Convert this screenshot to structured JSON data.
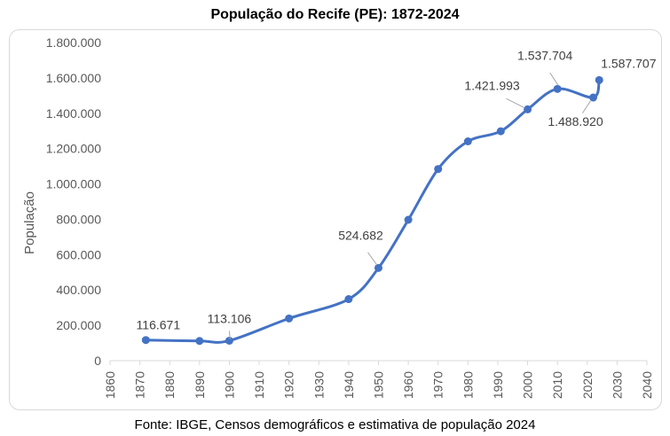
{
  "chart_data": {
    "type": "line",
    "title": "População do Recife (PE): 1872-2024",
    "xlabel": "",
    "ylabel": "População",
    "xlim": [
      1860,
      2040
    ],
    "ylim": [
      0,
      1800000
    ],
    "x_ticks": [
      "1860",
      "1870",
      "1880",
      "1890",
      "1900",
      "1910",
      "1920",
      "1930",
      "1940",
      "1950",
      "1960",
      "1970",
      "1980",
      "1990",
      "2000",
      "2010",
      "2020",
      "2030",
      "2040"
    ],
    "y_ticks": [
      "0",
      "200.000",
      "400.000",
      "600.000",
      "800.000",
      "1.000.000",
      "1.200.000",
      "1.400.000",
      "1.600.000",
      "1.800.000"
    ],
    "grid": false,
    "smooth": true,
    "series_color": "#4472c4",
    "x": [
      1872,
      1890,
      1900,
      1920,
      1940,
      1950,
      1960,
      1970,
      1980,
      1991,
      2000,
      2010,
      2022,
      2024
    ],
    "y": [
      116671,
      111556,
      113106,
      238843,
      348424,
      524682,
      797234,
      1084459,
      1240937,
      1298229,
      1421993,
      1537704,
      1488920,
      1587707
    ],
    "data_labels": [
      {
        "x": 1872,
        "text": "116.671"
      },
      {
        "x": 1900,
        "text": "113.106"
      },
      {
        "x": 1950,
        "text": "524.682"
      },
      {
        "x": 2000,
        "text": "1.421.993"
      },
      {
        "x": 2010,
        "text": "1.537.704"
      },
      {
        "x": 2022,
        "text": "1.488.920"
      },
      {
        "x": 2024,
        "text": "1.587.707"
      }
    ]
  },
  "source": "Fonte: IBGE, Censos demográficos e estimativa de população 2024"
}
